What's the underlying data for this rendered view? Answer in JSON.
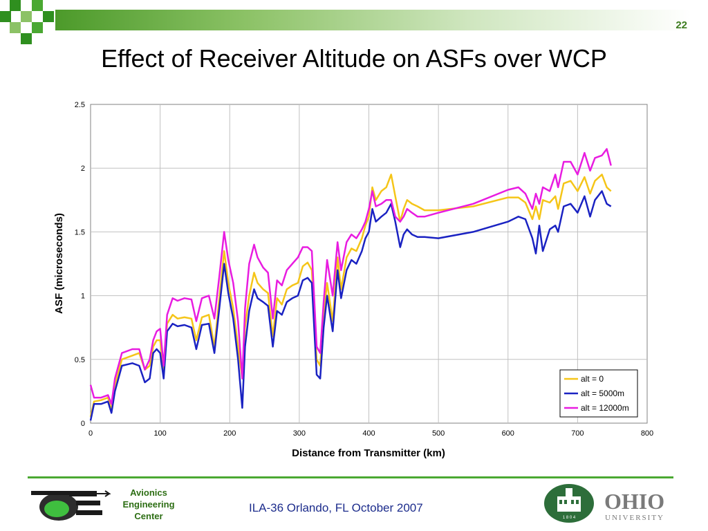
{
  "slide": {
    "number": "22",
    "title": "Effect of Receiver Altitude on ASFs over WCP"
  },
  "footer": {
    "center_text": "ILA-36  Orlando, FL  October 2007",
    "left_logo_lines": [
      "Avionics",
      "Engineering",
      "Center"
    ],
    "right_logo_text": "OHIO",
    "right_logo_subtext": "UNIVERSITY",
    "seal_year": "1 8 0 4"
  },
  "colors": {
    "accent": "#4aa832",
    "title_text": "#000000",
    "footer_text": "#1c2c8c"
  },
  "chart_data": {
    "type": "line",
    "xlabel": "Distance from Transmitter (km)",
    "ylabel": "ASF (microseconds)",
    "xlim": [
      0,
      800
    ],
    "ylim": [
      0,
      2.5
    ],
    "x_ticks": [
      "0",
      "100",
      "200",
      "300",
      "400",
      "500",
      "600",
      "700",
      "800"
    ],
    "y_ticks": [
      "0",
      "0.5",
      "1",
      "1.5",
      "2",
      "2.5"
    ],
    "grid": true,
    "legend_position": "bottom-right",
    "series": [
      {
        "name": "alt = 0",
        "color": "#f5c518",
        "x": [
          0,
          5,
          15,
          25,
          30,
          35,
          45,
          60,
          70,
          78,
          85,
          90,
          95,
          100,
          105,
          110,
          118,
          125,
          135,
          145,
          152,
          160,
          170,
          178,
          185,
          192,
          198,
          205,
          212,
          218,
          222,
          228,
          235,
          240,
          248,
          255,
          262,
          268,
          275,
          282,
          290,
          298,
          305,
          312,
          318,
          325,
          330,
          335,
          340,
          348,
          355,
          360,
          368,
          375,
          382,
          390,
          395,
          400,
          405,
          410,
          418,
          425,
          432,
          438,
          445,
          450,
          455,
          462,
          470,
          480,
          500,
          550,
          600,
          615,
          625,
          635,
          640,
          645,
          650,
          660,
          668,
          672,
          680,
          690,
          700,
          710,
          718,
          725,
          735,
          742,
          748
        ],
        "y": [
          0.05,
          0.17,
          0.18,
          0.2,
          0.1,
          0.3,
          0.5,
          0.53,
          0.55,
          0.42,
          0.45,
          0.6,
          0.65,
          0.65,
          0.42,
          0.78,
          0.85,
          0.82,
          0.83,
          0.82,
          0.65,
          0.83,
          0.85,
          0.6,
          0.98,
          1.35,
          1.1,
          0.9,
          0.6,
          0.35,
          0.75,
          1.0,
          1.18,
          1.1,
          1.05,
          1.02,
          0.68,
          0.98,
          0.93,
          1.05,
          1.08,
          1.1,
          1.23,
          1.26,
          1.2,
          0.5,
          0.45,
          0.85,
          1.1,
          0.8,
          1.3,
          1.05,
          1.3,
          1.37,
          1.35,
          1.45,
          1.55,
          1.62,
          1.85,
          1.75,
          1.82,
          1.85,
          1.95,
          1.78,
          1.58,
          1.68,
          1.75,
          1.72,
          1.7,
          1.67,
          1.67,
          1.7,
          1.77,
          1.77,
          1.73,
          1.6,
          1.7,
          1.6,
          1.75,
          1.73,
          1.78,
          1.68,
          1.88,
          1.9,
          1.82,
          1.93,
          1.8,
          1.9,
          1.95,
          1.85,
          1.82
        ]
      },
      {
        "name": "alt = 5000m",
        "color": "#1a22c2",
        "x": [
          0,
          5,
          15,
          25,
          30,
          35,
          45,
          60,
          70,
          78,
          85,
          90,
          95,
          100,
          105,
          110,
          118,
          125,
          135,
          145,
          152,
          160,
          170,
          178,
          185,
          192,
          198,
          205,
          212,
          218,
          222,
          228,
          235,
          240,
          248,
          255,
          262,
          268,
          275,
          282,
          290,
          298,
          305,
          312,
          318,
          325,
          330,
          335,
          340,
          348,
          355,
          360,
          368,
          375,
          382,
          390,
          395,
          400,
          405,
          410,
          418,
          425,
          432,
          438,
          445,
          450,
          455,
          462,
          470,
          480,
          500,
          550,
          600,
          615,
          625,
          635,
          640,
          645,
          650,
          660,
          668,
          672,
          680,
          690,
          700,
          710,
          718,
          725,
          735,
          742,
          748
        ],
        "y": [
          0.02,
          0.15,
          0.15,
          0.17,
          0.08,
          0.25,
          0.45,
          0.47,
          0.45,
          0.32,
          0.35,
          0.55,
          0.58,
          0.55,
          0.35,
          0.72,
          0.78,
          0.76,
          0.77,
          0.75,
          0.58,
          0.77,
          0.78,
          0.55,
          0.9,
          1.25,
          1.02,
          0.82,
          0.5,
          0.12,
          0.6,
          0.88,
          1.05,
          0.98,
          0.95,
          0.92,
          0.6,
          0.88,
          0.85,
          0.95,
          0.98,
          1.0,
          1.12,
          1.14,
          1.1,
          0.38,
          0.35,
          0.75,
          1.0,
          0.72,
          1.2,
          0.98,
          1.2,
          1.28,
          1.25,
          1.35,
          1.45,
          1.5,
          1.68,
          1.58,
          1.62,
          1.65,
          1.72,
          1.58,
          1.38,
          1.48,
          1.52,
          1.48,
          1.46,
          1.46,
          1.45,
          1.5,
          1.58,
          1.62,
          1.6,
          1.45,
          1.33,
          1.55,
          1.35,
          1.52,
          1.55,
          1.5,
          1.7,
          1.72,
          1.65,
          1.78,
          1.62,
          1.75,
          1.82,
          1.72,
          1.7
        ]
      },
      {
        "name": "alt = 12000m",
        "color": "#e81ce0",
        "x": [
          0,
          5,
          15,
          25,
          30,
          35,
          45,
          60,
          70,
          78,
          85,
          90,
          95,
          100,
          105,
          110,
          118,
          125,
          135,
          145,
          152,
          160,
          170,
          178,
          185,
          192,
          198,
          205,
          212,
          218,
          222,
          228,
          235,
          240,
          248,
          255,
          262,
          268,
          275,
          282,
          290,
          298,
          305,
          312,
          318,
          325,
          330,
          335,
          340,
          348,
          355,
          360,
          368,
          375,
          382,
          390,
          395,
          400,
          405,
          410,
          418,
          425,
          432,
          438,
          445,
          450,
          455,
          462,
          470,
          480,
          500,
          550,
          600,
          615,
          625,
          635,
          640,
          645,
          650,
          660,
          668,
          672,
          680,
          690,
          700,
          710,
          718,
          725,
          735,
          742,
          748
        ],
        "y": [
          0.3,
          0.2,
          0.2,
          0.22,
          0.15,
          0.35,
          0.55,
          0.58,
          0.58,
          0.42,
          0.5,
          0.65,
          0.72,
          0.74,
          0.45,
          0.85,
          0.98,
          0.96,
          0.98,
          0.97,
          0.8,
          0.98,
          1.0,
          0.82,
          1.15,
          1.5,
          1.28,
          1.1,
          0.8,
          0.35,
          0.9,
          1.25,
          1.4,
          1.3,
          1.22,
          1.18,
          0.82,
          1.12,
          1.08,
          1.2,
          1.25,
          1.3,
          1.38,
          1.38,
          1.35,
          0.6,
          0.55,
          0.95,
          1.28,
          1.0,
          1.42,
          1.2,
          1.42,
          1.48,
          1.45,
          1.52,
          1.58,
          1.68,
          1.82,
          1.7,
          1.72,
          1.75,
          1.75,
          1.62,
          1.58,
          1.62,
          1.68,
          1.65,
          1.62,
          1.62,
          1.65,
          1.72,
          1.83,
          1.85,
          1.8,
          1.68,
          1.8,
          1.72,
          1.85,
          1.82,
          1.95,
          1.85,
          2.05,
          2.05,
          1.95,
          2.12,
          1.98,
          2.08,
          2.1,
          2.15,
          2.02
        ]
      }
    ]
  }
}
